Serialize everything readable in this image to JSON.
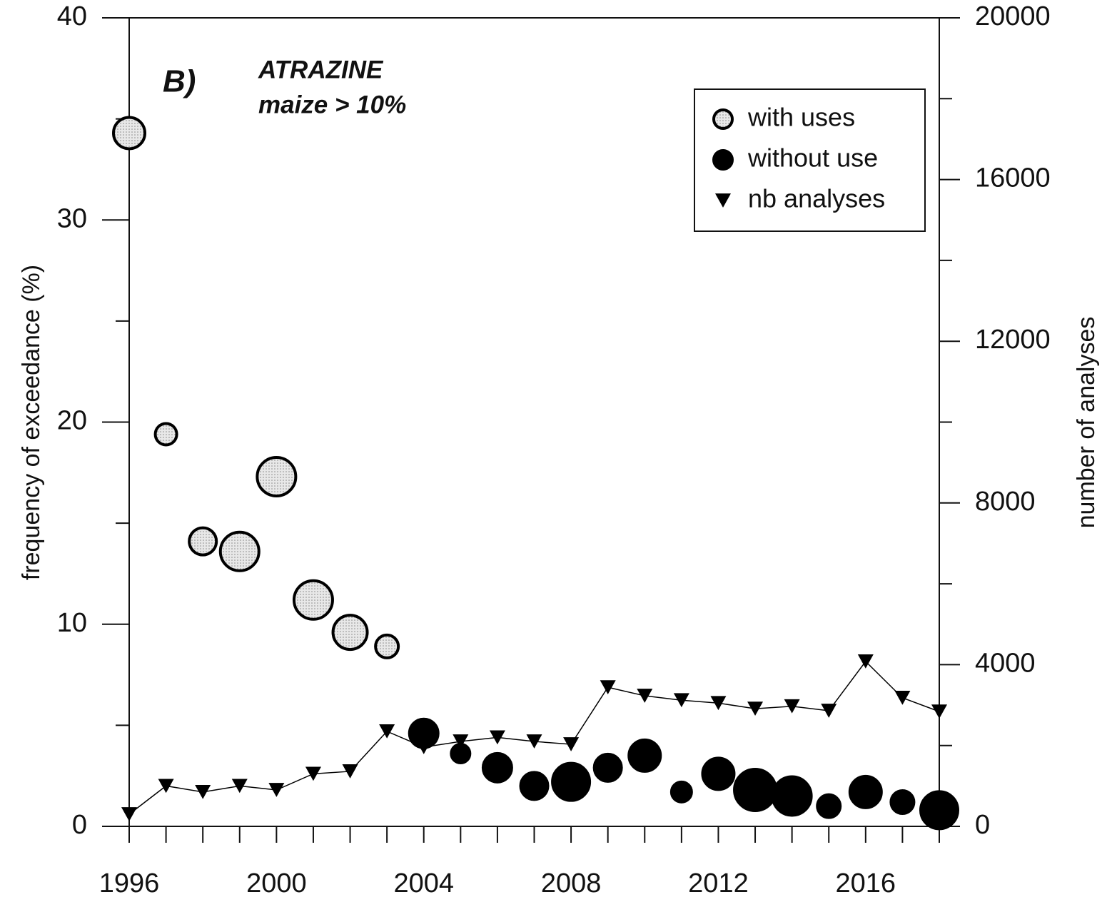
{
  "chart_data": {
    "type": "scatter",
    "annotations": [
      "B)",
      "ATRAZINE",
      "maize > 10%"
    ],
    "ylabel": "frequency of exceedance (%)",
    "y2label": "number of analyses",
    "xlim": [
      1996,
      2018
    ],
    "xticks": [
      1996,
      2000,
      2004,
      2008,
      2012,
      2016
    ],
    "xticks_minor": [
      1997,
      1998,
      1999,
      2001,
      2002,
      2003,
      2005,
      2006,
      2007,
      2009,
      2010,
      2011,
      2013,
      2014,
      2015,
      2017,
      2018
    ],
    "ylim": [
      0,
      40
    ],
    "yticks": [
      0,
      10,
      20,
      30,
      40
    ],
    "yticks_minor": [
      5,
      15,
      25,
      35
    ],
    "y2lim": [
      0,
      20000
    ],
    "y2ticks": [
      0,
      4000,
      8000,
      12000,
      16000,
      20000
    ],
    "y2ticks_minor": [
      2000,
      6000,
      10000,
      14000,
      18000
    ],
    "legend": "upper right",
    "series": [
      {
        "name": "with uses",
        "marker": "circle",
        "color": "#e2e2e2",
        "x": [
          1996,
          1997,
          1998,
          1999,
          2000,
          2001,
          2002,
          2003
        ],
        "values": [
          34.3,
          19.4,
          14.1,
          13.6,
          17.3,
          11.2,
          9.6,
          8.9
        ],
        "sizes": [
          22,
          15,
          19,
          27,
          27,
          27,
          24,
          16
        ]
      },
      {
        "name": "without use",
        "marker": "circle",
        "color": "#000000",
        "x": [
          2004,
          2005,
          2006,
          2007,
          2008,
          2009,
          2010,
          2011,
          2012,
          2013,
          2014,
          2015,
          2016,
          2017,
          2018
        ],
        "values": [
          4.6,
          3.6,
          2.9,
          2.0,
          2.2,
          2.9,
          3.5,
          1.7,
          2.6,
          1.8,
          1.5,
          1.0,
          1.7,
          1.2,
          0.8
        ],
        "sizes": [
          20,
          13,
          20,
          19,
          26,
          19,
          22,
          14,
          22,
          29,
          27,
          16,
          22,
          16,
          26
        ]
      },
      {
        "name": "nb analyses",
        "marker": "triangle-down",
        "color": "#000000",
        "axis": "y2",
        "line": true,
        "x": [
          1996,
          1997,
          1998,
          1999,
          2000,
          2001,
          2002,
          2003,
          2004,
          2005,
          2006,
          2007,
          2008,
          2009,
          2010,
          2011,
          2012,
          2013,
          2014,
          2015,
          2016,
          2017,
          2018
        ],
        "values": [
          300,
          1000,
          850,
          1000,
          900,
          1300,
          1360,
          2350,
          1960,
          2100,
          2200,
          2100,
          2030,
          3440,
          3230,
          3120,
          3050,
          2910,
          2970,
          2860,
          4080,
          3180,
          2840
        ]
      }
    ]
  }
}
